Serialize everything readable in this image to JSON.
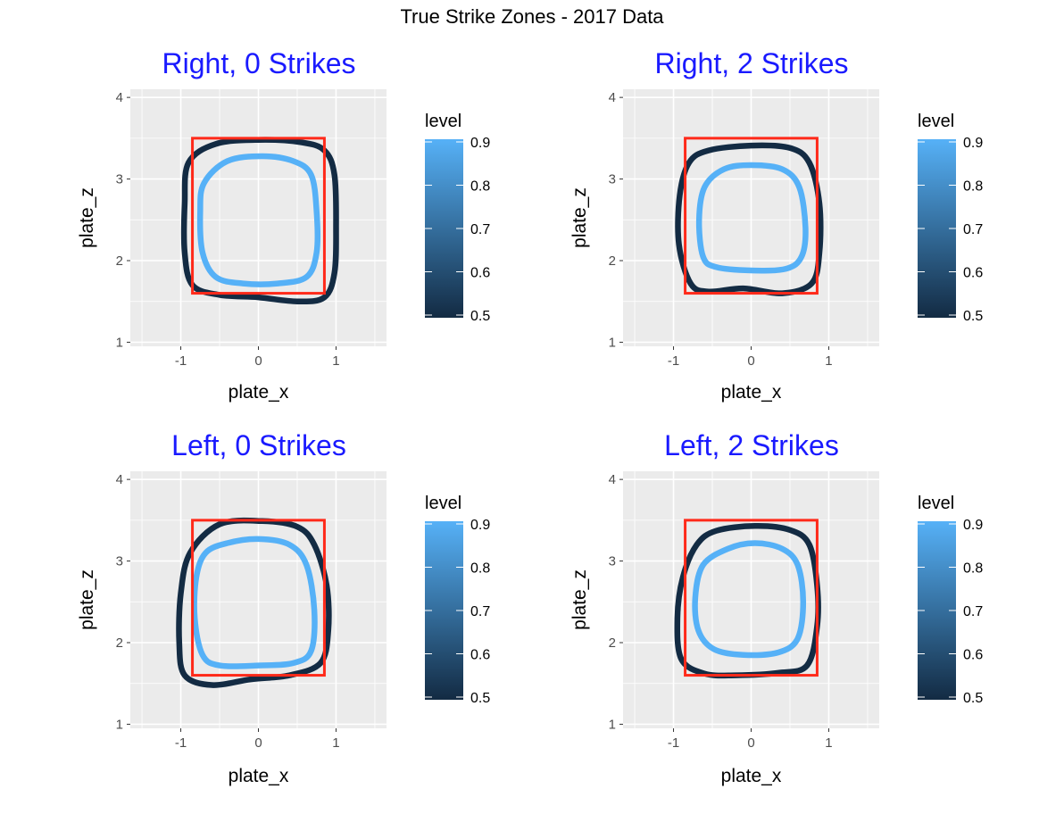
{
  "figure": {
    "title": "True Strike Zones - 2017 Data",
    "title_color": "#1a1aff",
    "panel_background": "#ebebeb",
    "grid_color": "#ffffff",
    "zone_box_color": "#ff2a1a"
  },
  "chart_data": [
    {
      "type": "contour",
      "title": "Right, 0 Strikes",
      "xlabel": "plate_x",
      "ylabel": "plate_z",
      "xlim": [
        -1.65,
        1.65
      ],
      "ylim": [
        0.95,
        4.1
      ],
      "xticks": [
        -1,
        0,
        1
      ],
      "yticks": [
        1,
        2,
        3,
        4
      ],
      "grid": true,
      "strike_zone_box": {
        "x": [
          -0.85,
          0.85
        ],
        "z": [
          1.6,
          3.5
        ]
      },
      "legend": {
        "title": "level",
        "position": "right",
        "ticks": [
          "0.9",
          "0.8",
          "0.7",
          "0.6",
          "0.5"
        ],
        "range": [
          0.5,
          0.9
        ],
        "color_low": "#132b43",
        "color_high": "#56b1f7"
      },
      "series": [
        {
          "level": 0.5,
          "color": "#132b43",
          "points": [
            [
              -0.55,
              3.43
            ],
            [
              0,
              3.48
            ],
            [
              0.55,
              3.45
            ],
            [
              0.85,
              3.35
            ],
            [
              0.98,
              3.05
            ],
            [
              1.0,
              2.4
            ],
            [
              0.98,
              1.85
            ],
            [
              0.85,
              1.55
            ],
            [
              0.5,
              1.5
            ],
            [
              0,
              1.55
            ],
            [
              -0.5,
              1.58
            ],
            [
              -0.85,
              1.7
            ],
            [
              -0.95,
              2.1
            ],
            [
              -0.95,
              2.7
            ],
            [
              -0.9,
              3.2
            ]
          ]
        },
        {
          "level": 0.9,
          "color": "#56b1f7",
          "points": [
            [
              -0.4,
              3.22
            ],
            [
              0.05,
              3.28
            ],
            [
              0.45,
              3.22
            ],
            [
              0.68,
              3.05
            ],
            [
              0.75,
              2.6
            ],
            [
              0.75,
              2.1
            ],
            [
              0.62,
              1.8
            ],
            [
              0.25,
              1.72
            ],
            [
              -0.2,
              1.72
            ],
            [
              -0.55,
              1.8
            ],
            [
              -0.72,
              2.1
            ],
            [
              -0.75,
              2.6
            ],
            [
              -0.7,
              2.95
            ]
          ]
        }
      ]
    },
    {
      "type": "contour",
      "title": "Right, 2 Strikes",
      "xlabel": "plate_x",
      "ylabel": "plate_z",
      "xlim": [
        -1.65,
        1.65
      ],
      "ylim": [
        0.95,
        4.1
      ],
      "xticks": [
        -1,
        0,
        1
      ],
      "yticks": [
        1,
        2,
        3,
        4
      ],
      "grid": true,
      "strike_zone_box": {
        "x": [
          -0.85,
          0.85
        ],
        "z": [
          1.6,
          3.5
        ]
      },
      "legend": {
        "title": "level",
        "position": "right",
        "ticks": [
          "0.9",
          "0.8",
          "0.7",
          "0.6",
          "0.5"
        ],
        "range": [
          0.5,
          0.9
        ],
        "color_low": "#132b43",
        "color_high": "#56b1f7"
      },
      "series": [
        {
          "level": 0.5,
          "color": "#132b43",
          "points": [
            [
              -0.55,
              3.35
            ],
            [
              0,
              3.41
            ],
            [
              0.5,
              3.38
            ],
            [
              0.75,
              3.2
            ],
            [
              0.88,
              2.7
            ],
            [
              0.88,
              2.1
            ],
            [
              0.78,
              1.72
            ],
            [
              0.4,
              1.6
            ],
            [
              -0.1,
              1.66
            ],
            [
              -0.55,
              1.62
            ],
            [
              -0.78,
              1.72
            ],
            [
              -0.93,
              2.2
            ],
            [
              -0.92,
              2.8
            ],
            [
              -0.8,
              3.2
            ]
          ]
        },
        {
          "level": 0.9,
          "color": "#56b1f7",
          "points": [
            [
              -0.35,
              3.12
            ],
            [
              0,
              3.17
            ],
            [
              0.4,
              3.12
            ],
            [
              0.62,
              2.9
            ],
            [
              0.7,
              2.4
            ],
            [
              0.65,
              2.05
            ],
            [
              0.45,
              1.9
            ],
            [
              0,
              1.88
            ],
            [
              -0.45,
              1.92
            ],
            [
              -0.62,
              2.05
            ],
            [
              -0.67,
              2.5
            ],
            [
              -0.6,
              2.9
            ]
          ]
        }
      ]
    },
    {
      "type": "contour",
      "title": "Left, 0 Strikes",
      "xlabel": "plate_x",
      "ylabel": "plate_z",
      "xlim": [
        -1.65,
        1.65
      ],
      "ylim": [
        0.95,
        4.1
      ],
      "xticks": [
        -1,
        0,
        1
      ],
      "yticks": [
        1,
        2,
        3,
        4
      ],
      "grid": true,
      "strike_zone_box": {
        "x": [
          -0.85,
          0.85
        ],
        "z": [
          1.6,
          3.5
        ]
      },
      "legend": {
        "title": "level",
        "position": "right",
        "ticks": [
          "0.9",
          "0.8",
          "0.7",
          "0.6",
          "0.5"
        ],
        "range": [
          0.5,
          0.9
        ],
        "color_low": "#132b43",
        "color_high": "#56b1f7"
      },
      "series": [
        {
          "level": 0.5,
          "color": "#132b43",
          "points": [
            [
              -0.5,
              3.45
            ],
            [
              0.05,
              3.49
            ],
            [
              0.5,
              3.42
            ],
            [
              0.72,
              3.2
            ],
            [
              0.88,
              2.7
            ],
            [
              0.9,
              2.15
            ],
            [
              0.8,
              1.75
            ],
            [
              0.4,
              1.6
            ],
            [
              -0.1,
              1.55
            ],
            [
              -0.6,
              1.48
            ],
            [
              -0.95,
              1.6
            ],
            [
              -1.02,
              2.0
            ],
            [
              -1.0,
              2.6
            ],
            [
              -0.88,
              3.1
            ]
          ]
        },
        {
          "level": 0.9,
          "color": "#56b1f7",
          "points": [
            [
              -0.4,
              3.22
            ],
            [
              0,
              3.27
            ],
            [
              0.4,
              3.2
            ],
            [
              0.62,
              2.95
            ],
            [
              0.72,
              2.4
            ],
            [
              0.68,
              1.9
            ],
            [
              0.45,
              1.75
            ],
            [
              0,
              1.72
            ],
            [
              -0.5,
              1.72
            ],
            [
              -0.72,
              1.85
            ],
            [
              -0.82,
              2.3
            ],
            [
              -0.8,
              2.8
            ],
            [
              -0.68,
              3.1
            ]
          ]
        }
      ]
    },
    {
      "type": "contour",
      "title": "Left, 2 Strikes",
      "xlabel": "plate_x",
      "ylabel": "plate_z",
      "xlim": [
        -1.65,
        1.65
      ],
      "ylim": [
        0.95,
        4.1
      ],
      "xticks": [
        -1,
        0,
        1
      ],
      "yticks": [
        1,
        2,
        3,
        4
      ],
      "grid": true,
      "strike_zone_box": {
        "x": [
          -0.85,
          0.85
        ],
        "z": [
          1.6,
          3.5
        ]
      },
      "legend": {
        "title": "level",
        "position": "right",
        "ticks": [
          "0.9",
          "0.8",
          "0.7",
          "0.6",
          "0.5"
        ],
        "range": [
          0.5,
          0.9
        ],
        "color_low": "#132b43",
        "color_high": "#56b1f7"
      },
      "series": [
        {
          "level": 0.5,
          "color": "#132b43",
          "points": [
            [
              -0.45,
              3.37
            ],
            [
              0.05,
              3.43
            ],
            [
              0.5,
              3.38
            ],
            [
              0.75,
              3.2
            ],
            [
              0.85,
              2.7
            ],
            [
              0.85,
              2.2
            ],
            [
              0.72,
              1.72
            ],
            [
              0.35,
              1.63
            ],
            [
              -0.2,
              1.6
            ],
            [
              -0.6,
              1.62
            ],
            [
              -0.9,
              1.8
            ],
            [
              -0.95,
              2.3
            ],
            [
              -0.88,
              2.8
            ],
            [
              -0.7,
              3.2
            ]
          ]
        },
        {
          "level": 0.9,
          "color": "#56b1f7",
          "points": [
            [
              -0.3,
              3.15
            ],
            [
              0.05,
              3.22
            ],
            [
              0.4,
              3.15
            ],
            [
              0.6,
              2.95
            ],
            [
              0.67,
              2.5
            ],
            [
              0.6,
              2.05
            ],
            [
              0.35,
              1.88
            ],
            [
              -0.1,
              1.85
            ],
            [
              -0.48,
              1.92
            ],
            [
              -0.68,
              2.15
            ],
            [
              -0.72,
              2.55
            ],
            [
              -0.62,
              2.95
            ]
          ]
        }
      ]
    }
  ]
}
